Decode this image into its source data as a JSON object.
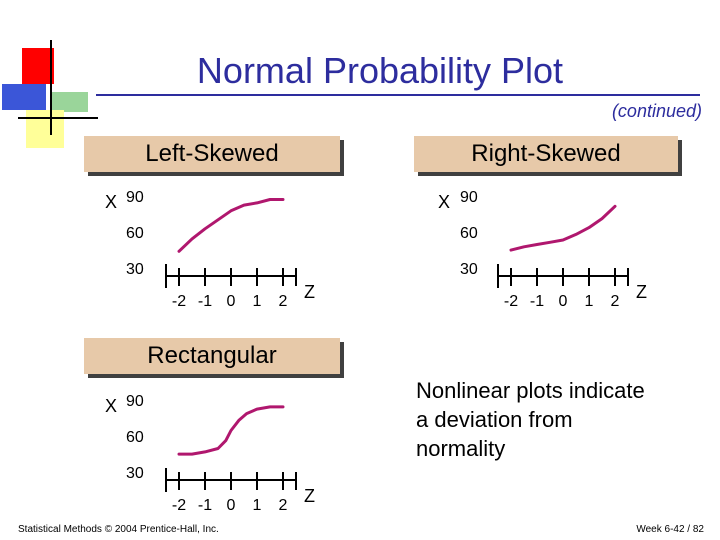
{
  "header": {
    "title": "Normal Probability Plot",
    "continued": "(continued)"
  },
  "colors": {
    "title": "#2d2d9e",
    "curve": "#b0176e",
    "label_box": "#e7c9a9"
  },
  "chart_data": [
    {
      "type": "line",
      "title": "Left-Skewed",
      "ylabel": "X",
      "xlabel": "Z",
      "yticks": [
        "90",
        "60",
        "30"
      ],
      "xticks": [
        "-2",
        "-1",
        "0",
        "1",
        "2"
      ],
      "ylim": [
        20,
        100
      ],
      "xlim": [
        -2.5,
        2.5
      ],
      "x": [
        -2,
        -1.5,
        -1,
        -0.5,
        0,
        0.5,
        1,
        1.5,
        2
      ],
      "y": [
        42,
        53,
        62,
        70,
        78,
        83,
        85,
        88,
        88
      ]
    },
    {
      "type": "line",
      "title": "Right-Skewed",
      "ylabel": "X",
      "xlabel": "Z",
      "yticks": [
        "90",
        "60",
        "30"
      ],
      "xticks": [
        "-2",
        "-1",
        "0",
        "1",
        "2"
      ],
      "ylim": [
        20,
        100
      ],
      "xlim": [
        -2.5,
        2.5
      ],
      "x": [
        -2,
        -1.5,
        -1,
        -0.5,
        0,
        0.5,
        1,
        1.5,
        2
      ],
      "y": [
        43,
        46,
        48,
        50,
        52,
        57,
        63,
        71,
        82
      ]
    },
    {
      "type": "line",
      "title": "Rectangular",
      "ylabel": "X",
      "xlabel": "Z",
      "yticks": [
        "90",
        "60",
        "30"
      ],
      "xticks": [
        "-2",
        "-1",
        "0",
        "1",
        "2"
      ],
      "ylim": [
        20,
        100
      ],
      "xlim": [
        -2.5,
        2.5
      ],
      "x": [
        -2,
        -1.5,
        -1,
        -0.5,
        -0.2,
        0,
        0.3,
        0.6,
        1,
        1.5,
        2
      ],
      "y": [
        43,
        43,
        45,
        48,
        55,
        64,
        73,
        79,
        83,
        85,
        85
      ]
    }
  ],
  "note": {
    "lines": [
      "Nonlinear plots indicate",
      "a deviation from",
      "normality"
    ]
  },
  "footer": {
    "left": "Statistical Methods © 2004 Prentice-Hall, Inc.",
    "right": "Week 6-42 / 82"
  }
}
